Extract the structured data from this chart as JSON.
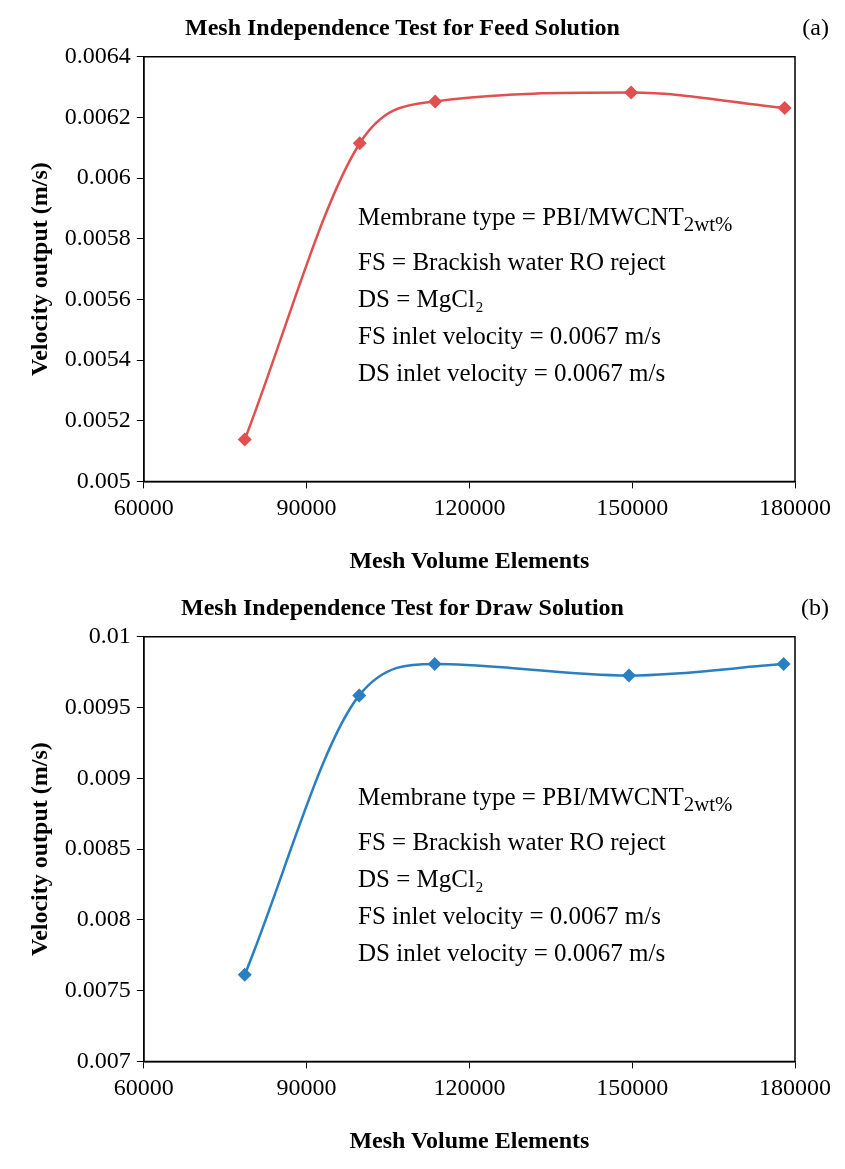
{
  "chart_data": [
    {
      "type": "line",
      "title": "Mesh Independence Test for Feed Solution",
      "xlabel": "Mesh Volume Elements",
      "ylabel": "Velocity output (m/s)",
      "x": [
        78600,
        99800,
        113700,
        149800,
        178100
      ],
      "series": [
        {
          "color": "#e05050",
          "values": [
            0.005138,
            0.006115,
            0.006253,
            0.006282,
            0.006231
          ]
        }
      ],
      "xlim": [
        60000,
        180000
      ],
      "xticks": [
        60000,
        90000,
        120000,
        150000,
        180000
      ],
      "ylim": [
        0.005,
        0.0064
      ],
      "yticks": [
        0.005,
        0.0052,
        0.0054,
        0.0056,
        0.0058,
        0.006,
        0.0062,
        0.0064
      ],
      "marker": "diamond",
      "line_style": "solid",
      "grid": false,
      "legend": false,
      "annotations": [
        "(a)",
        "Membrane type = PBI/MWCNT$_{2wt%}$",
        "FS = Brackish water RO reject",
        "DS = MgCl₂",
        "FS inlet velocity = 0.0067 m/s",
        "DS inlet velocity = 0.0067 m/s"
      ]
    },
    {
      "type": "line",
      "title": "Mesh Independence Test for Draw Solution",
      "xlabel": "Mesh Volume Elements",
      "ylabel": "Velocity output (m/s)",
      "x": [
        78600,
        99700,
        113600,
        149400,
        177900
      ],
      "series": [
        {
          "color": "#2a7fc0",
          "values": [
            0.007612,
            0.009586,
            0.009808,
            0.009727,
            0.009808
          ]
        }
      ],
      "xlim": [
        60000,
        180000
      ],
      "xticks": [
        60000,
        90000,
        120000,
        150000,
        180000
      ],
      "ylim": [
        0.007,
        0.01
      ],
      "yticks": [
        0.007,
        0.0075,
        0.008,
        0.0085,
        0.009,
        0.0095,
        0.01
      ],
      "marker": "diamond",
      "line_style": "solid",
      "grid": false,
      "legend": false,
      "annotations": [
        "(b)",
        "Membrane type = PBI/MWCNT$_{2wt%}$",
        "FS = Brackish water RO reject",
        "DS = MgCl₂",
        "FS inlet velocity = 0.0067 m/s",
        "DS inlet velocity = 0.0067 m/s"
      ]
    }
  ]
}
